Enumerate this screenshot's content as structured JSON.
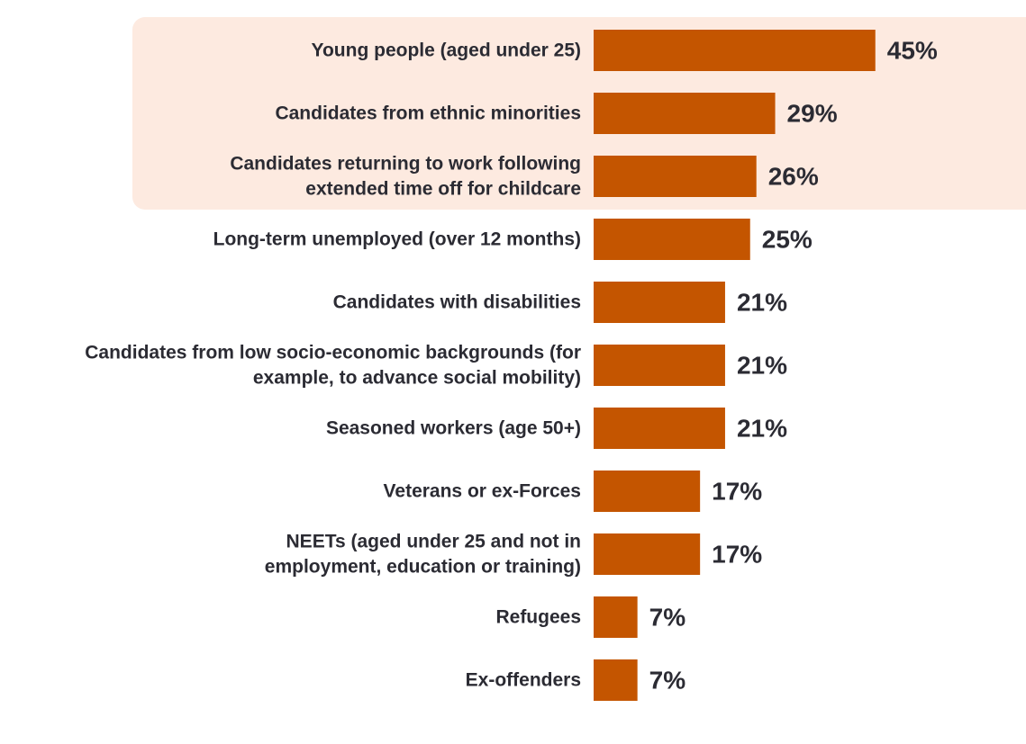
{
  "colors": {
    "bar": "#c45500",
    "highlight_band": "#fdeae0",
    "text": "#2b2b33"
  },
  "chart_data": {
    "type": "bar",
    "orientation": "horizontal",
    "categories": [
      "Young people (aged under 25)",
      "Candidates from ethnic minorities",
      "Candidates returning to work following extended time off for childcare",
      "Long-term unemployed (over 12 months)",
      "Candidates with disabilities",
      "Candidates from low socio-economic backgrounds (for example, to advance social mobility)",
      "Seasoned workers (age 50+)",
      "Veterans or ex-Forces",
      "NEETs (aged under 25 and not in employment, education or training)",
      "Refugees",
      "Ex-offenders"
    ],
    "category_lines": [
      [
        "Young people (aged under 25)"
      ],
      [
        "Candidates from ethnic minorities"
      ],
      [
        "Candidates returning to work following",
        "extended time off for childcare"
      ],
      [
        "Long-term unemployed (over 12 months)"
      ],
      [
        "Candidates with disabilities"
      ],
      [
        "Candidates from low socio-economic backgrounds (for",
        "example, to advance social mobility)"
      ],
      [
        "Seasoned workers (age 50+)"
      ],
      [
        "Veterans or ex-Forces"
      ],
      [
        "NEETs (aged under 25 and not in",
        "employment, education or training)"
      ],
      [
        "Refugees"
      ],
      [
        "Ex-offenders"
      ]
    ],
    "values": [
      45,
      29,
      26,
      25,
      21,
      21,
      21,
      17,
      17,
      7,
      7
    ],
    "value_labels": [
      "45%",
      "29%",
      "26%",
      "25%",
      "21%",
      "21%",
      "21%",
      "17%",
      "17%",
      "7%",
      "7%"
    ],
    "highlighted_categories": [
      0,
      1,
      2
    ],
    "title": "",
    "xlabel": "",
    "ylabel": "",
    "xlim": [
      0,
      100
    ],
    "grid": false,
    "legend": "none"
  }
}
